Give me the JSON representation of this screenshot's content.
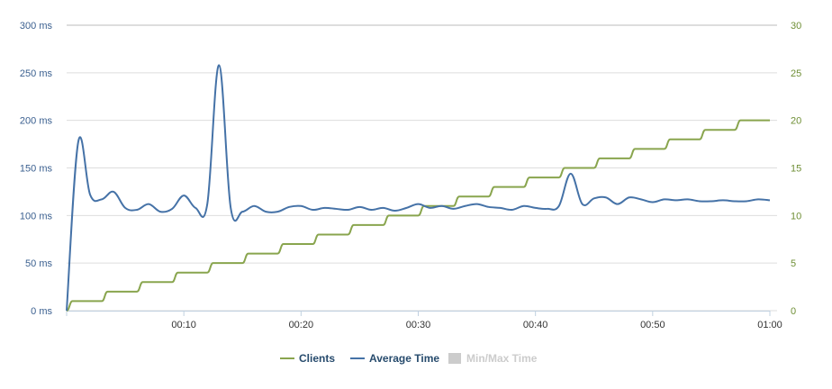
{
  "chart_data": {
    "type": "line",
    "title": "",
    "xlabel": "",
    "ylabel": "",
    "x_ticks": [
      "00:10",
      "00:20",
      "00:30",
      "00:40",
      "00:50",
      "01:00"
    ],
    "y_left_ticks": [
      "0 ms",
      "50 ms",
      "100 ms",
      "150 ms",
      "200 ms",
      "250 ms",
      "300 ms"
    ],
    "y_right_ticks": [
      "0",
      "5",
      "10",
      "15",
      "20",
      "25",
      "30"
    ],
    "xlim_seconds": [
      0,
      60
    ],
    "ylim_left": [
      0,
      300
    ],
    "ylim_right": [
      0,
      30
    ],
    "grid": "horizontal",
    "legend_position": "bottom-center",
    "colors": {
      "clients": "#89a54e",
      "average_time": "#4572a7",
      "minmax_disabled": "#cccccc"
    },
    "legend": [
      {
        "label": "Clients",
        "color": "#89a54e",
        "enabled": true
      },
      {
        "label": "Average Time",
        "color": "#4572a7",
        "enabled": true
      },
      {
        "label": "Min/Max Time",
        "color": "#cccccc",
        "enabled": false
      }
    ],
    "series": [
      {
        "name": "Clients",
        "axis": "right",
        "x": [
          0,
          1,
          2,
          3,
          4,
          5,
          6,
          7,
          8,
          9,
          10,
          11,
          12,
          13,
          14,
          15,
          16,
          17,
          18,
          19,
          20,
          21,
          22,
          23,
          24,
          25,
          26,
          27,
          28,
          29,
          30,
          31,
          32,
          33,
          34,
          35,
          36,
          37,
          38,
          39,
          40,
          41,
          42,
          43,
          44,
          45,
          46,
          47,
          48,
          49,
          50,
          51,
          52,
          53,
          54,
          55,
          56,
          57,
          58,
          59,
          60
        ],
        "values": [
          0,
          1,
          1,
          1,
          2,
          2,
          2,
          3,
          3,
          3,
          4,
          4,
          4,
          5,
          5,
          5,
          6,
          6,
          6,
          7,
          7,
          7,
          8,
          8,
          8,
          9,
          9,
          9,
          10,
          10,
          10,
          11,
          11,
          11,
          12,
          12,
          12,
          13,
          13,
          13,
          14,
          14,
          14,
          15,
          15,
          15,
          16,
          16,
          16,
          17,
          17,
          17,
          18,
          18,
          18,
          19,
          19,
          19,
          20,
          20,
          20
        ]
      },
      {
        "name": "Average Time",
        "axis": "left",
        "x": [
          0,
          1,
          2,
          3,
          4,
          5,
          6,
          7,
          8,
          9,
          10,
          11,
          12,
          13,
          14,
          15,
          16,
          17,
          18,
          19,
          20,
          21,
          22,
          23,
          24,
          25,
          26,
          27,
          28,
          29,
          30,
          31,
          32,
          33,
          34,
          35,
          36,
          37,
          38,
          39,
          40,
          41,
          42,
          43,
          44,
          45,
          46,
          47,
          48,
          49,
          50,
          51,
          52,
          53,
          54,
          55,
          56,
          57,
          58,
          59,
          60
        ],
        "values": [
          0,
          178,
          122,
          117,
          125,
          108,
          106,
          112,
          104,
          107,
          121,
          108,
          112,
          258,
          108,
          104,
          110,
          104,
          104,
          109,
          110,
          106,
          108,
          107,
          106,
          109,
          106,
          108,
          105,
          108,
          112,
          108,
          110,
          107,
          110,
          112,
          109,
          108,
          106,
          110,
          108,
          107,
          110,
          144,
          112,
          118,
          119,
          112,
          119,
          117,
          114,
          117,
          116,
          117,
          115,
          115,
          116,
          115,
          115,
          117,
          116
        ]
      }
    ]
  }
}
